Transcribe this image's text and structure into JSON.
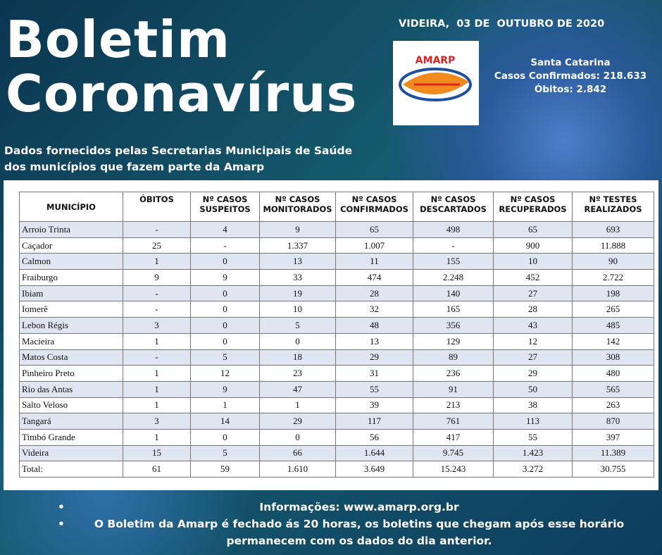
{
  "header": {
    "title_lines": [
      "Boletim",
      "Coronavírus"
    ],
    "date": "VIDEIRA,  03 DE  OUTUBRO DE 2020",
    "logo": "AMARP",
    "state": [
      "Santa Catarina",
      "Casos Confirmados: 218.633",
      "Óbitos: 2.842"
    ],
    "subtitle": [
      "Dados fornecidos pelas Secretarias Municipais de Saúde",
      "dos municípios que fazem parte da Amarp"
    ]
  },
  "table": {
    "columns": [
      [
        "MUNICÍPIO"
      ],
      [
        "ÓBITOS"
      ],
      [
        "Nº CASOS",
        "SUSPEITOS"
      ],
      [
        "Nº CASOS",
        "MONITORADOS"
      ],
      [
        "Nº CASOS",
        "CONFIRMADOS"
      ],
      [
        "Nº CASOS",
        "DESCARTADOS"
      ],
      [
        "Nº CASOS",
        "RECUPERADOS"
      ],
      [
        "Nº TESTES",
        "REALIZADOS"
      ]
    ],
    "rows": [
      [
        "Arroio Trinta",
        "-",
        "4",
        "9",
        "65",
        "498",
        "65",
        "693"
      ],
      [
        "Caçador",
        "25",
        "-",
        "1.337",
        "1.007",
        "-",
        "900",
        "11.888"
      ],
      [
        "Calmon",
        "1",
        "0",
        "13",
        "11",
        "155",
        "10",
        "90"
      ],
      [
        "Fraiburgo",
        "9",
        "9",
        "33",
        "474",
        "2.248",
        "452",
        "2.722"
      ],
      [
        "Ibiam",
        "-",
        "0",
        "19",
        "28",
        "140",
        "27",
        "198"
      ],
      [
        "Iomerê",
        "-",
        "0",
        "10",
        "32",
        "165",
        "28",
        "265"
      ],
      [
        "Lebon Régis",
        "3",
        "0",
        "5",
        "48",
        "356",
        "43",
        "485"
      ],
      [
        "Macieira",
        "1",
        "0",
        "0",
        "13",
        "129",
        "12",
        "142"
      ],
      [
        "Matos Costa",
        "-",
        "5",
        "18",
        "29",
        "89",
        "27",
        "308"
      ],
      [
        "Pinheiro Preto",
        "1",
        "12",
        "23",
        "31",
        "236",
        "29",
        "480"
      ],
      [
        "Rio das Antas",
        "1",
        "9",
        "47",
        "55",
        "91",
        "50",
        "565"
      ],
      [
        "Salto Veloso",
        "1",
        "1",
        "1",
        "39",
        "213",
        "38",
        "263"
      ],
      [
        "Tangará",
        "3",
        "14",
        "29",
        "117",
        "761",
        "113",
        "870"
      ],
      [
        "Timbó Grande",
        "1",
        "0",
        "0",
        "56",
        "417",
        "55",
        "397"
      ],
      [
        "Videira",
        "15",
        "5",
        "66",
        "1.644",
        "9.745",
        "1.423",
        "11.389"
      ],
      [
        "Total:",
        "61",
        "59",
        "1.610",
        "3.649",
        "15.243",
        "3.272",
        "30.755"
      ]
    ]
  },
  "footer": [
    "Informações: www.amarp.org.br",
    "O Boletim da Amarp é fechado ás 20 horas, os boletins que chegam após esse horário permanecem com os dados do dia anterior."
  ]
}
